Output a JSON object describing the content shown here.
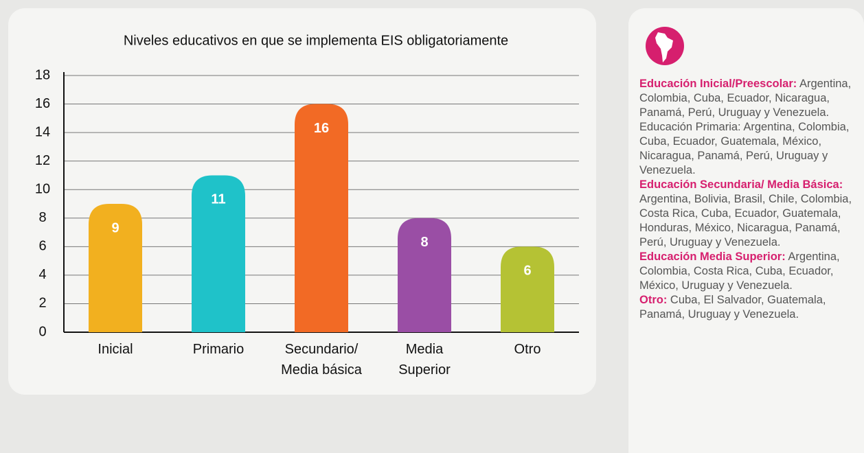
{
  "chart_data": {
    "type": "bar",
    "title": "Niveles educativos en que se implementa EIS obligatoriamente",
    "categories": [
      "Inicial",
      "Primario",
      "Secundario/\nMedia básica",
      "Media\nSuperior",
      "Otro"
    ],
    "values": [
      9,
      11,
      16,
      8,
      6
    ],
    "colors": [
      "#f2b01f",
      "#1fc2c9",
      "#f26a25",
      "#9a4ea5",
      "#b5c234"
    ],
    "ylim": [
      0,
      18
    ],
    "yticks": [
      0,
      2,
      4,
      6,
      8,
      10,
      12,
      14,
      16,
      18
    ],
    "grid": true
  },
  "panel": {
    "items": [
      {
        "heading": "Educación Inicial/Preescolar:",
        "text": "Argentina, Colombia, Cuba, Ecuador, Nicaragua, Panamá, Perú, Uruguay y Venezuela. Educación Primaria: Argentina, Colombia, Cuba, Ecuador, Guatemala, México, Nicaragua, Panamá, Perú, Uruguay y Venezuela."
      },
      {
        "heading": "Educación Secundaria/ Media Básica:",
        "text": "Argentina, Bolivia, Brasil, Chile, Colombia, Costa Rica, Cuba, Ecuador, Guatemala, Honduras, México, Nicaragua, Panamá, Perú, Uruguay y Venezuela."
      },
      {
        "heading": "Educación Media Superior:",
        "text": "Argentina, Colombia, Costa Rica, Cuba, Ecuador, México, Uruguay y Venezuela."
      },
      {
        "heading": "Otro:",
        "text": "Cuba, El Salvador, Guatemala, Panamá, Uruguay y Venezuela."
      }
    ]
  }
}
